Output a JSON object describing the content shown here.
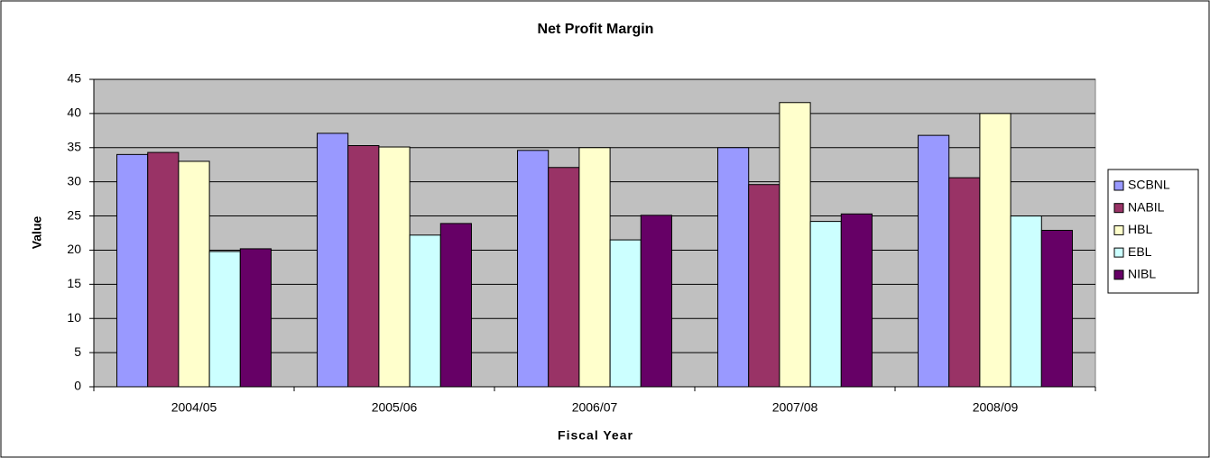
{
  "chart_data": {
    "type": "bar",
    "title": "Net Profit Margin",
    "x_label": "Fiscal Year",
    "y_label": "Value",
    "categories": [
      "2004/05",
      "2005/06",
      "2006/07",
      "2007/08",
      "2008/09"
    ],
    "series": [
      {
        "name": "SCBNL",
        "color": "#9999ff",
        "values": [
          34,
          37.1,
          34.6,
          35,
          36.8
        ]
      },
      {
        "name": "NABIL",
        "color": "#993366",
        "values": [
          34.3,
          35.3,
          32.1,
          29.6,
          30.6
        ]
      },
      {
        "name": "HBL",
        "color": "#ffffcc",
        "values": [
          33,
          35.1,
          35,
          41.6,
          40
        ]
      },
      {
        "name": "EBL",
        "color": "#ccffff",
        "values": [
          19.8,
          22.2,
          21.5,
          24.2,
          25
        ]
      },
      {
        "name": "NIBL",
        "color": "#660066",
        "values": [
          20.2,
          23.9,
          25.1,
          25.3,
          22.9
        ]
      }
    ],
    "ylim": [
      0,
      45
    ],
    "yticks": [
      0,
      5,
      10,
      15,
      20,
      25,
      30,
      35,
      40,
      45
    ],
    "grid": true,
    "legend": "right"
  }
}
